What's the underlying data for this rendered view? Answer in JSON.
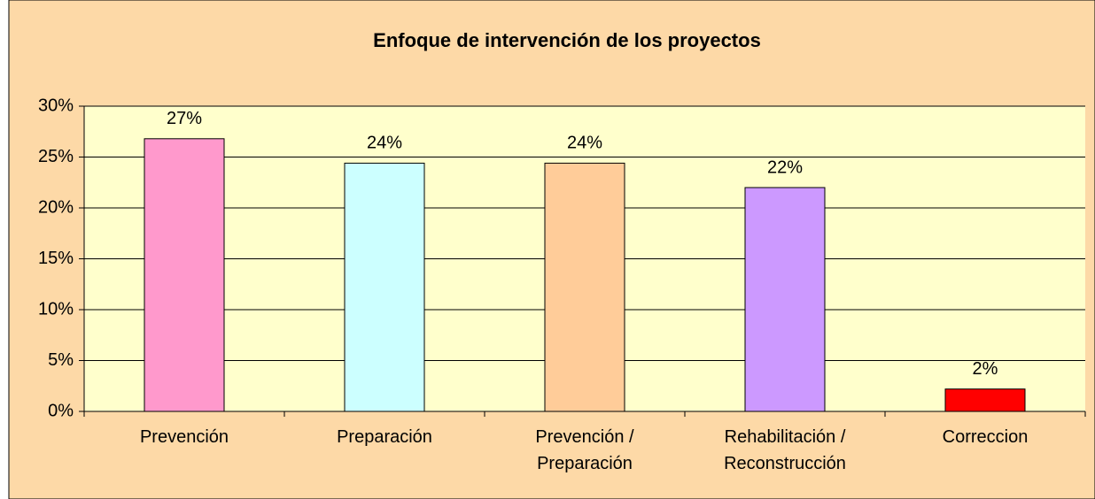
{
  "chart_data": {
    "type": "bar",
    "title": "Enfoque de intervención de los proyectos",
    "categories": [
      "Prevención",
      "Preparación",
      "Prevención / Preparación",
      "Rehabilitación / Reconstrucción",
      "Correccion"
    ],
    "values": [
      26.8,
      24.4,
      24.4,
      22,
      2.2
    ],
    "value_labels": [
      "27%",
      "24%",
      "24%",
      "22%",
      "2%"
    ],
    "colors": [
      "#ff99cc",
      "#ccffff",
      "#ffcc99",
      "#cc99ff",
      "#ff0000"
    ],
    "ylim": [
      0,
      30
    ],
    "yticks": [
      {
        "value": 0,
        "label": "0%"
      },
      {
        "value": 5,
        "label": "5%"
      },
      {
        "value": 10,
        "label": "10%"
      },
      {
        "value": 15,
        "label": "15%"
      },
      {
        "value": 20,
        "label": "20%"
      },
      {
        "value": 25,
        "label": "25%"
      },
      {
        "value": 30,
        "label": "30%"
      }
    ],
    "grid": true
  }
}
